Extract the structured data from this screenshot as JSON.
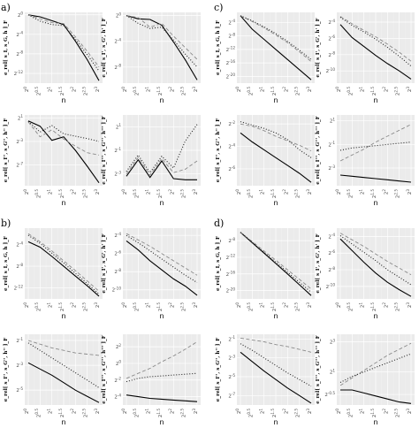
{
  "figure": {
    "group_labels": [
      "a)",
      "c)",
      "b)",
      "d)"
    ]
  },
  "chart_data": [
    {
      "type": "line",
      "group": "a",
      "x_label": "n",
      "y_label": "e_rel[ s_I, s_G, h ]_F",
      "x_ticks": [
        "2^0",
        "2^0.5",
        "2^1",
        "2^1.5",
        "2^2",
        "2^2.5",
        "2^3"
      ],
      "y_ticks": [
        "2^0",
        "2^-4",
        "2^-8",
        "2^-12"
      ],
      "yrange": [
        -14,
        0.5
      ],
      "x": [
        0,
        0.5,
        1,
        1.5,
        2,
        2.5,
        3
      ],
      "series": [
        {
          "style": "solid",
          "values": [
            0,
            -0.4,
            -1.2,
            -2.0,
            -5.4,
            -9.2,
            -13.5
          ]
        },
        {
          "style": "dash",
          "values": [
            0,
            -0.8,
            -1.6,
            -1.8,
            -4.5,
            -7.5,
            -10.7
          ]
        },
        {
          "style": "dot",
          "values": [
            0,
            -1.3,
            -2.0,
            -2.2,
            -5.0,
            -8.2,
            -11.5
          ]
        }
      ]
    },
    {
      "type": "line",
      "group": "a",
      "x_label": "n",
      "y_label": "e_rel[ s_I', s_G', h' ]_F",
      "x_ticks": [
        "2^0",
        "2^0.5",
        "2^1",
        "2^1.5",
        "2^2",
        "2^2.5",
        "2^3"
      ],
      "y_ticks": [
        "2^0",
        "2^-4",
        "2^-8"
      ],
      "yrange": [
        -10.5,
        0.5
      ],
      "x": [
        0,
        0.5,
        1,
        1.5,
        2,
        2.5,
        3
      ],
      "series": [
        {
          "style": "solid",
          "values": [
            0,
            -0.5,
            -0.6,
            -1.5,
            -4.1,
            -6.9,
            -10.0
          ]
        },
        {
          "style": "dash",
          "values": [
            0,
            -0.3,
            -1.8,
            -1.2,
            -3.2,
            -5.0,
            -6.8
          ]
        },
        {
          "style": "dot",
          "values": [
            0,
            -1.2,
            -2.0,
            -1.8,
            -3.8,
            -6.0,
            -8.0
          ]
        }
      ]
    },
    {
      "type": "line",
      "group": "c",
      "x_label": "n",
      "y_label": "e_rel[ s_I, s_G, h ]_F",
      "x_ticks": [
        "2^0",
        "2^0.5",
        "2^1",
        "2^1.5",
        "2^2",
        "2^2.5",
        "2^3"
      ],
      "y_ticks": [
        "2^-4",
        "2^-8",
        "2^-12",
        "2^-16",
        "2^-20"
      ],
      "yrange": [
        -22,
        -1
      ],
      "x": [
        0,
        0.5,
        1,
        1.5,
        2,
        2.5,
        3
      ],
      "series": [
        {
          "style": "solid",
          "values": [
            -2,
            -6,
            -9,
            -12,
            -15,
            -18,
            -21
          ]
        },
        {
          "style": "dash",
          "values": [
            -2,
            -3.7,
            -5.6,
            -7.7,
            -10,
            -12.7,
            -15.6
          ]
        },
        {
          "style": "dot",
          "values": [
            -2,
            -3.5,
            -5.3,
            -7.3,
            -9.6,
            -12.2,
            -15.0
          ]
        }
      ]
    },
    {
      "type": "line",
      "group": "c",
      "x_label": "n",
      "y_label": "e_rel[ s_I', s_G', h' ]_F",
      "x_ticks": [
        "2^0",
        "2^0.5",
        "2^1",
        "2^1.5",
        "2^2",
        "2^2.5",
        "2^3"
      ],
      "y_ticks": [
        "2^-4",
        "2^-6",
        "2^-8",
        "2^-10"
      ],
      "yrange": [
        -11.5,
        -2.8
      ],
      "x": [
        0,
        0.5,
        1,
        1.5,
        2,
        2.5,
        3
      ],
      "series": [
        {
          "style": "solid",
          "values": [
            -4.3,
            -5.9,
            -7.0,
            -8.1,
            -9.1,
            -10.0,
            -11.0
          ]
        },
        {
          "style": "dash",
          "values": [
            -3.3,
            -4.2,
            -5.0,
            -5.8,
            -6.7,
            -7.7,
            -8.8
          ]
        },
        {
          "style": "dot",
          "values": [
            -3.4,
            -4.4,
            -5.2,
            -6.1,
            -7.1,
            -8.2,
            -9.4
          ]
        }
      ]
    },
    {
      "type": "line",
      "group": "a",
      "x_label": "n",
      "y_label": "e_rel[ s_I'', s_G'', h'' ]_F",
      "x_ticks": [
        "2^0",
        "2^0.5",
        "2^1",
        "2^1.5",
        "2^2",
        "2^2.5",
        "2^3"
      ],
      "y_ticks": [
        "2^1",
        "2^-3",
        "2^-7"
      ],
      "yrange": [
        -10.5,
        1.5
      ],
      "x": [
        0,
        0.5,
        1,
        1.5,
        2,
        2.5,
        3
      ],
      "series": [
        {
          "style": "solid",
          "values": [
            0.5,
            -0.4,
            -2.8,
            -2.2,
            -4.5,
            -7.2,
            -10.0
          ]
        },
        {
          "style": "dash",
          "values": [
            0.3,
            -2.2,
            -1.0,
            -2.6,
            -3.8,
            -4.9,
            -5.3
          ]
        },
        {
          "style": "dot",
          "values": [
            0.4,
            -1.4,
            -0.3,
            -1.7,
            -2.1,
            -2.5,
            -3.0
          ]
        }
      ]
    },
    {
      "type": "line",
      "group": "a",
      "x_label": "n",
      "y_label": "e_rel[ s_I''', s_G''', h''' ]_F",
      "x_ticks": [
        "2^0",
        "2^0.5",
        "2^1",
        "2^1.5",
        "2^2",
        "2^2.5",
        "2^3"
      ],
      "y_ticks": [
        "2^1",
        "2^-1",
        "2^-3"
      ],
      "yrange": [
        -4,
        2
      ],
      "x": [
        0,
        0.5,
        1,
        1.5,
        2,
        2.5,
        3
      ],
      "series": [
        {
          "style": "solid",
          "values": [
            -3.2,
            -1.8,
            -3.3,
            -1.9,
            -3.4,
            -3.5,
            -3.5
          ]
        },
        {
          "style": "dash",
          "values": [
            -3.0,
            -1.6,
            -3.1,
            -1.7,
            -2.9,
            -2.6,
            -1.9
          ]
        },
        {
          "style": "dot",
          "values": [
            -2.8,
            -1.4,
            -2.9,
            -1.5,
            -2.5,
            -0.2,
            1.2
          ]
        }
      ]
    },
    {
      "type": "line",
      "group": "c",
      "x_label": "n",
      "y_label": "e_rel[ s_I'', s_G'', h'' ]_F",
      "x_ticks": [
        "2^0",
        "2^0.5",
        "2^1",
        "2^1.5",
        "2^2",
        "2^2.5",
        "2^3"
      ],
      "y_ticks": [
        "2^-2",
        "2^-4",
        "2^-6"
      ],
      "yrange": [
        -7.5,
        -1.2
      ],
      "x": [
        0,
        0.5,
        1,
        1.5,
        2,
        2.5,
        3
      ],
      "series": [
        {
          "style": "solid",
          "values": [
            -2.8,
            -3.6,
            -4.3,
            -5.0,
            -5.7,
            -6.4,
            -7.2
          ]
        },
        {
          "style": "dash",
          "values": [
            -2.0,
            -2.2,
            -2.6,
            -3.1,
            -3.5,
            -3.9,
            -4.4
          ]
        },
        {
          "style": "dot",
          "values": [
            -1.8,
            -2.1,
            -2.4,
            -2.8,
            -3.4,
            -4.3,
            -5.0
          ]
        }
      ]
    },
    {
      "type": "line",
      "group": "c",
      "x_label": "n",
      "y_label": "e_rel[ s_I''', s_G''', h''' ]_F",
      "x_ticks": [
        "2^0",
        "2^0.5",
        "2^1",
        "2^1.5",
        "2^2",
        "2^2.5",
        "2^3"
      ],
      "y_ticks": [
        "2^1",
        "2^-1",
        "2^-3"
      ],
      "yrange": [
        -4.5,
        1.5
      ],
      "x": [
        0,
        0.5,
        1,
        1.5,
        2,
        2.5,
        3
      ],
      "series": [
        {
          "style": "solid",
          "values": [
            -3.6,
            -3.7,
            -3.8,
            -3.9,
            -4.0,
            -4.1,
            -4.2
          ]
        },
        {
          "style": "dash",
          "values": [
            -2.4,
            -1.9,
            -1.4,
            -0.8,
            -0.3,
            0.2,
            0.7
          ]
        },
        {
          "style": "dot",
          "values": [
            -1.5,
            -1.3,
            -1.2,
            -1.1,
            -1.0,
            -0.9,
            -0.8
          ]
        }
      ]
    },
    {
      "type": "line",
      "group": "b",
      "x_label": "n",
      "y_label": "e_rel[ s_I, s_G, h ]_F",
      "x_ticks": [
        "2^0",
        "2^0.5",
        "2^1",
        "2^1.5",
        "2^2",
        "2^2.5",
        "2^3"
      ],
      "y_ticks": [
        "2^-4",
        "2^-8",
        "2^-12"
      ],
      "yrange": [
        -14,
        -1
      ],
      "x": [
        0,
        0.5,
        1,
        1.5,
        2,
        2.5,
        3
      ],
      "series": [
        {
          "style": "solid",
          "values": [
            -3.5,
            -4.5,
            -6.2,
            -8,
            -9.8,
            -11.6,
            -13.5
          ]
        },
        {
          "style": "dash",
          "values": [
            -2.0,
            -3.5,
            -5.2,
            -7,
            -8.8,
            -10.7,
            -12.6
          ]
        },
        {
          "style": "dot",
          "values": [
            -2.3,
            -3.8,
            -5.6,
            -7.4,
            -9.3,
            -11.2,
            -13.1
          ]
        }
      ]
    },
    {
      "type": "line",
      "group": "b",
      "x_label": "n",
      "y_label": "e_rel[ s_I', s_G', h' ]_F",
      "x_ticks": [
        "2^0",
        "2^0.5",
        "2^1",
        "2^1.5",
        "2^2",
        "2^2.5",
        "2^3"
      ],
      "y_ticks": [
        "2^-4",
        "2^-6",
        "2^-8",
        "2^-10"
      ],
      "yrange": [
        -11,
        -3.2
      ],
      "x": [
        0,
        0.5,
        1,
        1.5,
        2,
        2.5,
        3
      ],
      "series": [
        {
          "style": "solid",
          "values": [
            -4.6,
            -5.6,
            -6.8,
            -7.8,
            -8.8,
            -9.6,
            -10.6
          ]
        },
        {
          "style": "dash",
          "values": [
            -3.8,
            -4.5,
            -5.2,
            -6.0,
            -6.8,
            -7.6,
            -8.4
          ]
        },
        {
          "style": "dot",
          "values": [
            -4.0,
            -4.8,
            -5.7,
            -6.6,
            -7.5,
            -8.4,
            -9.2
          ]
        }
      ]
    },
    {
      "type": "line",
      "group": "d",
      "x_label": "n",
      "y_label": "e_rel[ s_I, s_G, h ]_F",
      "x_ticks": [
        "2^0",
        "2^0.5",
        "2^1",
        "2^1.5",
        "2^2",
        "2^2.5",
        "2^3"
      ],
      "y_ticks": [
        "2^-8",
        "2^-12",
        "2^-16",
        "2^-20"
      ],
      "yrange": [
        -22,
        -5
      ],
      "x": [
        0,
        0.5,
        1,
        1.5,
        2,
        2.5,
        3
      ],
      "series": [
        {
          "style": "solid",
          "values": [
            -6,
            -8.5,
            -11,
            -13.5,
            -16,
            -18.6,
            -21.2
          ]
        },
        {
          "style": "dash",
          "values": [
            -6,
            -8.2,
            -10.5,
            -12.7,
            -15,
            -17.3,
            -19.6
          ]
        },
        {
          "style": "dot",
          "values": [
            -6,
            -8.4,
            -10.8,
            -13.2,
            -15.6,
            -18,
            -20.4
          ]
        }
      ]
    },
    {
      "type": "line",
      "group": "d",
      "x_label": "n",
      "y_label": "e_rel[ s_I', s_G', h' ]_F",
      "x_ticks": [
        "2^0",
        "2^0.5",
        "2^1",
        "2^1.5",
        "2^2",
        "2^2.5",
        "2^3"
      ],
      "y_ticks": [
        "2^-4",
        "2^-6",
        "2^-8",
        "2^-10"
      ],
      "yrange": [
        -11.5,
        -3
      ],
      "x": [
        0,
        0.5,
        1,
        1.5,
        2,
        2.5,
        3
      ],
      "series": [
        {
          "style": "solid",
          "values": [
            -4.3,
            -5.7,
            -7.1,
            -8.4,
            -9.5,
            -10.4,
            -11.2
          ]
        },
        {
          "style": "dash",
          "values": [
            -3.6,
            -4.4,
            -5.2,
            -6.1,
            -7.0,
            -7.8,
            -8.6
          ]
        },
        {
          "style": "dot",
          "values": [
            -3.9,
            -4.9,
            -5.9,
            -6.9,
            -8.0,
            -8.9,
            -9.8
          ]
        }
      ]
    },
    {
      "type": "line",
      "group": "b",
      "x_label": "n",
      "y_label": "e_rel[ s_I'', s_G'', h'' ]_F",
      "x_ticks": [
        "2^0",
        "2^0.5",
        "2^1",
        "2^1.5",
        "2^2",
        "2^2.5",
        "2^3"
      ],
      "y_ticks": [
        "2^-1",
        "2^-3",
        "2^-5"
      ],
      "yrange": [
        -6.2,
        -0.5
      ],
      "x": [
        0,
        0.5,
        1,
        1.5,
        2,
        2.5,
        3
      ],
      "series": [
        {
          "style": "solid",
          "values": [
            -2.8,
            -3.3,
            -3.8,
            -4.4,
            -5.0,
            -5.5,
            -6.0
          ]
        },
        {
          "style": "dash",
          "values": [
            -1.0,
            -1.3,
            -1.6,
            -1.8,
            -2.0,
            -2.1,
            -2.2
          ]
        },
        {
          "style": "dot",
          "values": [
            -1.2,
            -1.8,
            -2.4,
            -3.0,
            -3.6,
            -4.2,
            -4.8
          ]
        }
      ]
    },
    {
      "type": "line",
      "group": "b",
      "x_label": "n",
      "y_label": "e_rel[ s_I''', s_G''', h''' ]_F",
      "x_ticks": [
        "2^0",
        "2^0.5",
        "2^1",
        "2^1.5",
        "2^2",
        "2^2.5",
        "2^3"
      ],
      "y_ticks": [
        "2^2",
        "2^0",
        "2^-2",
        "2^-4"
      ],
      "yrange": [
        -5,
        3.5
      ],
      "x": [
        0,
        0.5,
        1,
        1.5,
        2,
        2.5,
        3
      ],
      "series": [
        {
          "style": "solid",
          "values": [
            -3.8,
            -4.0,
            -4.2,
            -4.3,
            -4.4,
            -4.5,
            -4.6
          ]
        },
        {
          "style": "dash",
          "values": [
            -1.8,
            -1.2,
            -0.6,
            0.2,
            0.9,
            1.7,
            2.6
          ]
        },
        {
          "style": "dot",
          "values": [
            -2.2,
            -1.8,
            -1.6,
            -1.5,
            -1.4,
            -1.3,
            -1.2
          ]
        }
      ]
    },
    {
      "type": "line",
      "group": "d",
      "x_label": "n",
      "y_label": "e_rel[ s_I'', s_G'', h'' ]_F",
      "x_ticks": [
        "2^0",
        "2^0.5",
        "2^1",
        "2^1.5",
        "2^2",
        "2^2.5",
        "2^3"
      ],
      "y_ticks": [
        "2^-1",
        "2^-3",
        "2^-5",
        "2^-7"
      ],
      "yrange": [
        -8,
        -0.5
      ],
      "x": [
        0,
        0.5,
        1,
        1.5,
        2,
        2.5,
        3
      ],
      "series": [
        {
          "style": "solid",
          "values": [
            -2.4,
            -3.4,
            -4.4,
            -5.3,
            -6.2,
            -7.0,
            -7.8
          ]
        },
        {
          "style": "dash",
          "values": [
            -0.9,
            -1.1,
            -1.3,
            -1.6,
            -1.8,
            -2.1,
            -2.4
          ]
        },
        {
          "style": "dot",
          "values": [
            -1.5,
            -2.2,
            -3.0,
            -3.8,
            -4.6,
            -5.3,
            -6.0
          ]
        }
      ]
    },
    {
      "type": "line",
      "group": "d",
      "x_label": "n",
      "y_label": "e_rel[ s_I''', s_G''', h''' ]_F",
      "x_ticks": [
        "2^0",
        "2^0.5",
        "2^1",
        "2^1.5",
        "2^2",
        "2^2.5",
        "2^3"
      ],
      "y_ticks": [
        "2^3",
        "2^1",
        "2^-0.5"
      ],
      "yrange": [
        -1.2,
        3.5
      ],
      "x": [
        0,
        0.5,
        1,
        1.5,
        2,
        2.5,
        3
      ],
      "series": [
        {
          "style": "solid",
          "values": [
            -0.2,
            -0.2,
            -0.4,
            -0.6,
            -0.8,
            -1.0,
            -1.1
          ]
        },
        {
          "style": "dash",
          "values": [
            0.1,
            0.6,
            1.1,
            1.6,
            2.1,
            2.5,
            2.9
          ]
        },
        {
          "style": "dot",
          "values": [
            0.3,
            0.7,
            1.0,
            1.3,
            1.6,
            1.9,
            2.2
          ]
        }
      ]
    }
  ]
}
